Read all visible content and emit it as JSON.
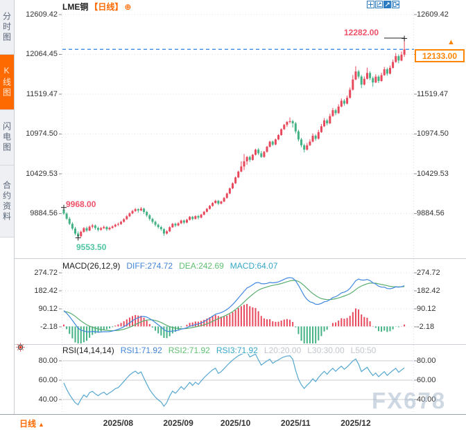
{
  "header": {
    "symbol": "LME铜",
    "period_tag": "【日线】",
    "add_icon_glyph": "⊕",
    "toolbar": [
      {
        "name": "pan-icon",
        "active": false
      },
      {
        "name": "fit-chart-icon",
        "active": false
      },
      {
        "name": "scale-chart-icon",
        "active": true
      },
      {
        "name": "exit-chart-icon",
        "active": false
      }
    ]
  },
  "sidebar": {
    "items": [
      {
        "name": "tab-time-share-chart",
        "label": "分时图",
        "active": false
      },
      {
        "name": "tab-kline-chart",
        "label": "K线图",
        "active": true
      },
      {
        "name": "tab-flash-chart",
        "label": "闪电图",
        "active": false
      },
      {
        "name": "tab-contract-info",
        "label": "合约资料",
        "active": false
      }
    ]
  },
  "price_axis": {
    "tick_labels": [
      "12609.42",
      "12064.45",
      "11519.47",
      "10974.50",
      "10429.53",
      "9884.56"
    ]
  },
  "annotations": {
    "high": {
      "label": "12282.00"
    },
    "early_high": {
      "label": "9968.00"
    },
    "low": {
      "label": "9553.50"
    },
    "last_price": {
      "label": "12133.00"
    }
  },
  "macd": {
    "title": "MACD(26,12,9)",
    "diff": "DIFF:274.72",
    "dea": "DEA:242.69",
    "macd": "MACD:64.07",
    "tick_labels": [
      "274.72",
      "182.42",
      "90.12",
      "-2.18"
    ]
  },
  "rsi": {
    "title": "RSI(14,14,14)",
    "rsi1": "RSI1:71.92",
    "rsi2": "RSI2:71.92",
    "rsi3": "RSI3:71.92",
    "l20": "L20:20.00",
    "l30": "L30:30.00",
    "l50": "L50:50",
    "tick_labels": [
      "80.00",
      "60.00",
      "40.00"
    ]
  },
  "bottom": {
    "period": "日线",
    "period_arrow": "▲",
    "dates": [
      "2025/08",
      "2025/09",
      "2025/10",
      "2025/11",
      "2025/12"
    ]
  },
  "watermark": "FX678",
  "colors": {
    "up": "#e8485c",
    "down": "#42b183",
    "diff_line": "#3f87e0",
    "dea_line": "#58ad6e",
    "rsi_line": "#56a7d0",
    "accent": "#ff6a00",
    "price_box": "#ff8400",
    "current_price_line": "#2780e3",
    "marked_high": "#ef5068",
    "marked_low": "#4fc4a0",
    "axis_text": "#333333",
    "grid": "#dcdfe4",
    "muted": "#c2c6cd",
    "label_blue": "#4285d6",
    "label_green": "#5fbf70",
    "label_cyan": "#35a6c9"
  },
  "chart_data": {
    "type": "candlestick",
    "title": "LME铜 日线",
    "y_ticks": [
      12609.42,
      12064.45,
      11519.47,
      10974.5,
      10429.53,
      9884.56
    ],
    "x_tick_labels": [
      "2025/08",
      "2025/09",
      "2025/10",
      "2025/11",
      "2025/12"
    ],
    "x_tick_day_index": [
      19,
      40,
      60,
      81,
      102
    ],
    "last_price": 12133.0,
    "marked": {
      "high": {
        "day": 119,
        "price": 12282.0
      },
      "early_high": {
        "day": 0,
        "price": 9968.0
      },
      "low": {
        "day": 5,
        "price": 9553.5
      }
    },
    "candles_ohlc": [
      [
        9940,
        9968,
        9868,
        9885
      ],
      [
        9885,
        9902,
        9798,
        9815
      ],
      [
        9815,
        9838,
        9728,
        9745
      ],
      [
        9745,
        9768,
        9658,
        9680
      ],
      [
        9680,
        9702,
        9588,
        9612
      ],
      [
        9612,
        9640,
        9553.5,
        9575
      ],
      [
        9575,
        9652,
        9562,
        9635
      ],
      [
        9635,
        9700,
        9622,
        9685
      ],
      [
        9685,
        9706,
        9632,
        9652
      ],
      [
        9652,
        9722,
        9645,
        9705
      ],
      [
        9705,
        9742,
        9682,
        9722
      ],
      [
        9722,
        9736,
        9664,
        9688
      ],
      [
        9688,
        9706,
        9642,
        9664
      ],
      [
        9664,
        9702,
        9650,
        9686
      ],
      [
        9686,
        9720,
        9672,
        9702
      ],
      [
        9702,
        9716,
        9648,
        9670
      ],
      [
        9670,
        9706,
        9654,
        9690
      ],
      [
        9690,
        9724,
        9676,
        9708
      ],
      [
        9708,
        9746,
        9696,
        9732
      ],
      [
        9732,
        9762,
        9715,
        9742
      ],
      [
        9742,
        9786,
        9730,
        9772
      ],
      [
        9772,
        9822,
        9762,
        9808
      ],
      [
        9808,
        9862,
        9798,
        9848
      ],
      [
        9848,
        9902,
        9838,
        9888
      ],
      [
        9888,
        9936,
        9876,
        9920
      ],
      [
        9920,
        9962,
        9908,
        9945
      ],
      [
        9945,
        9958,
        9898,
        9928
      ],
      [
        9928,
        9975,
        9918,
        9952
      ],
      [
        9952,
        9964,
        9882,
        9908
      ],
      [
        9908,
        9922,
        9838,
        9862
      ],
      [
        9862,
        9878,
        9788,
        9812
      ],
      [
        9812,
        9828,
        9748,
        9772
      ],
      [
        9772,
        9788,
        9708,
        9732
      ],
      [
        9732,
        9748,
        9678,
        9700
      ],
      [
        9700,
        9718,
        9648,
        9672
      ],
      [
        9672,
        9686,
        9580,
        9612
      ],
      [
        9612,
        9658,
        9600,
        9642
      ],
      [
        9642,
        9712,
        9632,
        9698
      ],
      [
        9698,
        9758,
        9690,
        9745
      ],
      [
        9745,
        9762,
        9700,
        9722
      ],
      [
        9722,
        9768,
        9712,
        9752
      ],
      [
        9752,
        9802,
        9742,
        9790
      ],
      [
        9790,
        9804,
        9740,
        9762
      ],
      [
        9762,
        9814,
        9752,
        9800
      ],
      [
        9800,
        9852,
        9790,
        9840
      ],
      [
        9840,
        9854,
        9792,
        9812
      ],
      [
        9812,
        9862,
        9802,
        9850
      ],
      [
        9850,
        9868,
        9806,
        9830
      ],
      [
        9830,
        9882,
        9820,
        9870
      ],
      [
        9870,
        9922,
        9860,
        9910
      ],
      [
        9910,
        9962,
        9900,
        9950
      ],
      [
        9950,
        10002,
        9940,
        9990
      ],
      [
        9990,
        10042,
        9980,
        10030
      ],
      [
        10030,
        10074,
        10018,
        10060
      ],
      [
        10060,
        10072,
        10000,
        10022
      ],
      [
        10022,
        10062,
        10010,
        10050
      ],
      [
        10050,
        10112,
        10040,
        10100
      ],
      [
        10100,
        10172,
        10090,
        10160
      ],
      [
        10160,
        10242,
        10150,
        10230
      ],
      [
        10230,
        10312,
        10220,
        10300
      ],
      [
        10300,
        10392,
        10290,
        10380
      ],
      [
        10380,
        10472,
        10370,
        10460
      ],
      [
        10460,
        10600,
        10450,
        10530
      ],
      [
        10530,
        10700,
        10480,
        10600
      ],
      [
        10600,
        10672,
        10552,
        10660
      ],
      [
        10660,
        10678,
        10592,
        10620
      ],
      [
        10620,
        10702,
        10610,
        10690
      ],
      [
        10690,
        10772,
        10680,
        10760
      ],
      [
        10760,
        10782,
        10688,
        10710
      ],
      [
        10710,
        10742,
        10648,
        10660
      ],
      [
        10660,
        10742,
        10650,
        10730
      ],
      [
        10730,
        10812,
        10720,
        10800
      ],
      [
        10800,
        10882,
        10790,
        10870
      ],
      [
        10870,
        10884,
        10812,
        10830
      ],
      [
        10830,
        10912,
        10820,
        10900
      ],
      [
        10900,
        10972,
        10890,
        10960
      ],
      [
        10960,
        11052,
        10950,
        11040
      ],
      [
        11040,
        11112,
        11030,
        11100
      ],
      [
        11100,
        11152,
        11072,
        11140
      ],
      [
        11140,
        11200,
        11120,
        11150
      ],
      [
        11150,
        11168,
        11062,
        11120
      ],
      [
        11120,
        11140,
        10982,
        11010
      ],
      [
        11010,
        11032,
        10872,
        10900
      ],
      [
        10900,
        10922,
        10792,
        10820
      ],
      [
        10820,
        10842,
        10722,
        10760
      ],
      [
        10760,
        10852,
        10750,
        10820
      ],
      [
        10820,
        10902,
        10810,
        10870
      ],
      [
        10870,
        10982,
        10860,
        10950
      ],
      [
        10950,
        10968,
        10882,
        10910
      ],
      [
        10910,
        11032,
        10900,
        11000
      ],
      [
        11000,
        11112,
        10990,
        11080
      ],
      [
        11080,
        11192,
        11070,
        11160
      ],
      [
        11160,
        11182,
        11092,
        11120
      ],
      [
        11120,
        11252,
        11110,
        11220
      ],
      [
        11220,
        11332,
        11210,
        11300
      ],
      [
        11300,
        11322,
        11232,
        11260
      ],
      [
        11260,
        11382,
        11250,
        11350
      ],
      [
        11350,
        11462,
        11340,
        11430
      ],
      [
        11430,
        11452,
        11362,
        11390
      ],
      [
        11390,
        11502,
        11380,
        11470
      ],
      [
        11470,
        11612,
        11460,
        11580
      ],
      [
        11580,
        11782,
        11570,
        11720
      ],
      [
        11720,
        11902,
        11710,
        11830
      ],
      [
        11830,
        11852,
        11732,
        11760
      ],
      [
        11760,
        11782,
        11602,
        11650
      ],
      [
        11650,
        11762,
        11640,
        11730
      ],
      [
        11730,
        11882,
        11720,
        11810
      ],
      [
        11810,
        11832,
        11712,
        11740
      ],
      [
        11740,
        11762,
        11622,
        11680
      ],
      [
        11680,
        11792,
        11670,
        11760
      ],
      [
        11760,
        11782,
        11672,
        11700
      ],
      [
        11700,
        11812,
        11690,
        11780
      ],
      [
        11780,
        11892,
        11770,
        11860
      ],
      [
        11860,
        11882,
        11772,
        11800
      ],
      [
        11800,
        11912,
        11790,
        11880
      ],
      [
        11880,
        11992,
        11870,
        11960
      ],
      [
        11960,
        12082,
        11950,
        12040
      ],
      [
        12040,
        12062,
        11942,
        11980
      ],
      [
        11980,
        12102,
        11970,
        12060
      ],
      [
        12060,
        12282,
        12030,
        12133
      ]
    ],
    "indicators": {
      "macd": {
        "params": [
          26,
          12,
          9
        ],
        "diff": 274.72,
        "dea": 242.69,
        "macd": 64.07,
        "y_ticks": [
          274.72,
          182.42,
          90.12,
          -2.18
        ]
      },
      "rsi": {
        "params": [
          14,
          14,
          14
        ],
        "rsi1": 71.92,
        "rsi2": 71.92,
        "rsi3": 71.92,
        "levels": [
          20.0,
          30.0,
          50
        ],
        "y_ticks": [
          80.0,
          60.0,
          40.0
        ]
      }
    }
  }
}
